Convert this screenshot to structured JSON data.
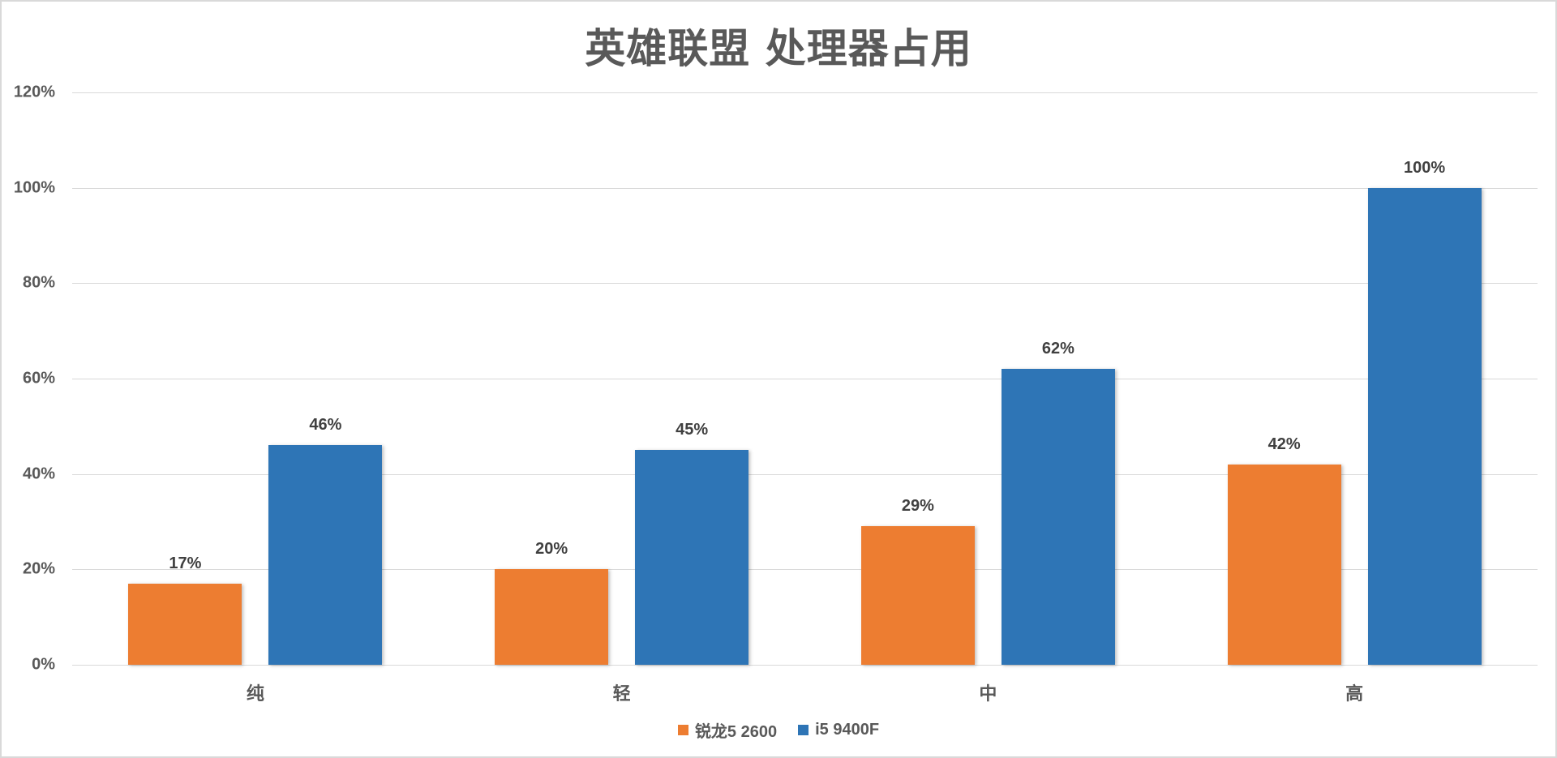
{
  "chart_data": {
    "type": "bar",
    "title": "英雄联盟 处理器占用",
    "categories": [
      "纯",
      "轻",
      "中",
      "高"
    ],
    "series": [
      {
        "name": "锐龙5 2600",
        "color": "#ED7D31",
        "values": [
          17,
          20,
          29,
          42
        ],
        "labels": [
          "17%",
          "20%",
          "29%",
          "42%"
        ]
      },
      {
        "name": "i5 9400F",
        "color": "#2E75B6",
        "values": [
          46,
          45,
          62,
          100
        ],
        "labels": [
          "46%",
          "45%",
          "62%",
          "100%"
        ]
      }
    ],
    "xlabel": "",
    "ylabel": "",
    "ylim": [
      0,
      120
    ],
    "yticks": [
      "0%",
      "20%",
      "40%",
      "60%",
      "80%",
      "100%",
      "120%"
    ],
    "grid": true,
    "legend_position": "bottom"
  }
}
